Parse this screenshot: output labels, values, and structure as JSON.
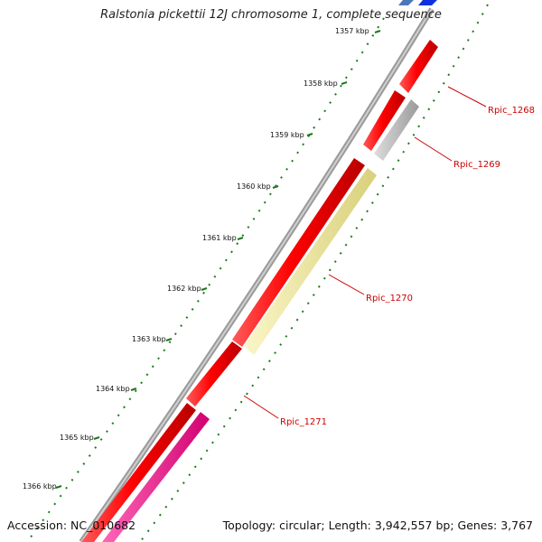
{
  "title": "Ralstonia pickettii 12J chromosome 1, complete sequence",
  "accession": "Accession: NC_010682",
  "summary": "Topology: circular; Length: 3,942,557 bp; Genes: 3,767",
  "ticks": [
    "1357 kbp",
    "1358 kbp",
    "1359 kbp",
    "1360 kbp",
    "1361 kbp",
    "1362 kbp",
    "1363 kbp",
    "1364 kbp",
    "1365 kbp",
    "1366 kbp"
  ],
  "gene_labels": [
    "Rpic_1268",
    "Rpic_1269",
    "Rpic_1270",
    "Rpic_1271"
  ],
  "colors": {
    "cds": "#ff0000",
    "pseudo": "#c0c0c0",
    "yellow_feature": "#f2eca0",
    "pink_feature": "#ff1a90",
    "backbone": "#808080",
    "tick": "#1a7a1a",
    "label": "#cc0000"
  }
}
